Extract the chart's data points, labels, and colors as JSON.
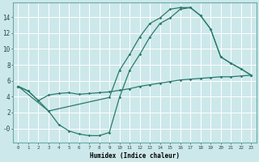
{
  "xlabel": "Humidex (Indice chaleur)",
  "xlim": [
    -0.5,
    23.5
  ],
  "ylim": [
    -1.8,
    15.8
  ],
  "xticks": [
    0,
    1,
    2,
    3,
    4,
    5,
    6,
    7,
    8,
    9,
    10,
    11,
    12,
    13,
    14,
    15,
    16,
    17,
    18,
    19,
    20,
    21,
    22,
    23
  ],
  "yticks": [
    0,
    2,
    4,
    6,
    8,
    10,
    12,
    14
  ],
  "ytick_labels": [
    "-0",
    "2",
    "4",
    "6",
    "8",
    "10",
    "12",
    "14"
  ],
  "bg_color": "#cde8ea",
  "grid_color": "#ffffff",
  "line_color": "#2a7a6a",
  "line1_x": [
    0,
    1,
    2,
    3,
    9,
    10,
    11,
    12,
    13,
    14,
    15,
    16,
    17,
    18,
    19,
    20,
    21,
    22,
    23
  ],
  "line1_y": [
    5.3,
    4.7,
    3.5,
    2.2,
    3.9,
    7.3,
    9.3,
    11.5,
    13.2,
    13.9,
    15.0,
    15.2,
    15.2,
    14.2,
    12.5,
    9.0,
    8.2,
    7.5,
    6.7
  ],
  "line2_x": [
    0,
    1,
    2,
    3,
    4,
    5,
    6,
    7,
    8,
    9,
    10,
    11,
    12,
    13,
    14,
    15,
    16,
    17,
    18,
    19,
    20,
    21,
    22,
    23
  ],
  "line2_y": [
    5.3,
    4.7,
    3.5,
    4.2,
    4.4,
    4.5,
    4.3,
    4.4,
    4.5,
    4.6,
    4.8,
    5.0,
    5.3,
    5.5,
    5.7,
    5.9,
    6.1,
    6.2,
    6.3,
    6.4,
    6.5,
    6.5,
    6.6,
    6.7
  ],
  "line3_x": [
    0,
    3,
    4,
    5,
    6,
    7,
    8,
    9,
    10,
    11,
    12,
    13,
    14,
    15,
    16,
    17,
    18,
    19,
    20,
    21,
    22,
    23
  ],
  "line3_y": [
    5.3,
    2.2,
    0.5,
    -0.3,
    -0.7,
    -0.9,
    -0.9,
    -0.5,
    3.9,
    7.3,
    9.3,
    11.5,
    13.2,
    13.9,
    15.0,
    15.2,
    14.2,
    12.5,
    9.0,
    8.2,
    7.5,
    6.7
  ]
}
